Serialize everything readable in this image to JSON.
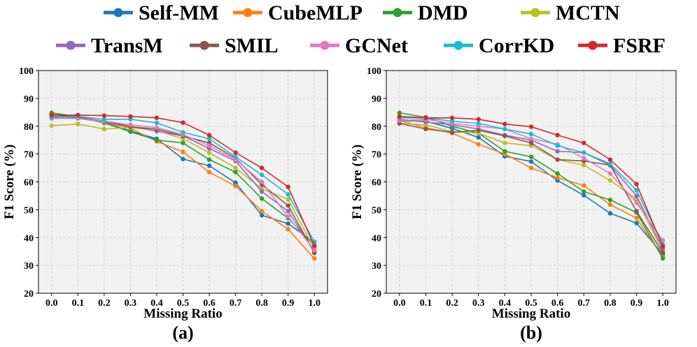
{
  "legend": {
    "entries": [
      {
        "name": "Self-MM",
        "color": "#1f77b4"
      },
      {
        "name": "CubeMLP",
        "color": "#ff7f0e"
      },
      {
        "name": "DMD",
        "color": "#2ca02c"
      },
      {
        "name": "MCTN",
        "color": "#bcbd22"
      },
      {
        "name": "TransM",
        "color": "#9467bd"
      },
      {
        "name": "SMIL",
        "color": "#8c564b"
      },
      {
        "name": "GCNet",
        "color": "#e377c2"
      },
      {
        "name": "CorrKD",
        "color": "#17becf"
      },
      {
        "name": "FSRF",
        "color": "#d62728"
      }
    ]
  },
  "chart_data": [
    {
      "type": "line",
      "panel_label": "(a)",
      "xlabel": "Missing Ratio",
      "ylabel": "F1 Score (%)",
      "x": [
        0.0,
        0.1,
        0.2,
        0.3,
        0.4,
        0.5,
        0.6,
        0.7,
        0.8,
        0.9,
        1.0
      ],
      "x_ticks": [
        "0.0",
        "0.1",
        "0.2",
        "0.3",
        "0.4",
        "0.5",
        "0.6",
        "0.7",
        "0.8",
        "0.9",
        "1.0"
      ],
      "y_ticks": [
        "20",
        "30",
        "40",
        "50",
        "60",
        "70",
        "80",
        "90",
        "100"
      ],
      "ylim": [
        20,
        100
      ],
      "grid": true,
      "series": [
        {
          "name": "Self-MM",
          "color": "#1f77b4",
          "values": [
            84.2,
            83.2,
            81.3,
            78.3,
            75.5,
            68.2,
            65.8,
            59.7,
            48.0,
            45.0,
            38.2
          ]
        },
        {
          "name": "CubeMLP",
          "color": "#ff7f0e",
          "values": [
            84.5,
            83.6,
            81.5,
            79.3,
            74.5,
            70.8,
            63.5,
            58.5,
            49.5,
            43.0,
            32.5
          ]
        },
        {
          "name": "DMD",
          "color": "#2ca02c",
          "values": [
            84.8,
            83.5,
            81.2,
            78.0,
            75.0,
            74.0,
            68.0,
            63.5,
            54.0,
            47.0,
            37.0
          ]
        },
        {
          "name": "MCTN",
          "color": "#bcbd22",
          "values": [
            80.2,
            80.8,
            79.0,
            79.5,
            78.5,
            75.5,
            70.5,
            65.0,
            57.5,
            53.7,
            36.0
          ]
        },
        {
          "name": "TransM",
          "color": "#9467bd",
          "values": [
            83.0,
            82.8,
            81.5,
            80.0,
            78.2,
            76.5,
            72.0,
            67.5,
            56.5,
            49.5,
            35.0
          ]
        },
        {
          "name": "SMIL",
          "color": "#8c564b",
          "values": [
            83.5,
            83.2,
            81.8,
            79.8,
            79.0,
            76.5,
            74.0,
            68.5,
            59.0,
            51.5,
            34.5
          ]
        },
        {
          "name": "GCNet",
          "color": "#e377c2",
          "values": [
            82.8,
            82.8,
            81.8,
            80.5,
            79.5,
            77.0,
            73.0,
            68.0,
            60.0,
            47.5,
            35.5
          ]
        },
        {
          "name": "CorrKD",
          "color": "#17becf",
          "values": [
            83.2,
            83.5,
            82.5,
            82.5,
            81.2,
            77.8,
            75.5,
            69.0,
            62.5,
            55.5,
            38.5
          ]
        },
        {
          "name": "FSRF",
          "color": "#d62728",
          "values": [
            84.0,
            84.0,
            83.8,
            83.5,
            83.0,
            81.3,
            76.8,
            70.5,
            65.0,
            58.2,
            37.0
          ]
        }
      ]
    },
    {
      "type": "line",
      "panel_label": "(b)",
      "xlabel": "Missing Ratio",
      "ylabel": "F1 Score (%)",
      "x": [
        0.0,
        0.1,
        0.2,
        0.3,
        0.4,
        0.5,
        0.6,
        0.7,
        0.8,
        0.9,
        1.0
      ],
      "x_ticks": [
        "0.0",
        "0.1",
        "0.2",
        "0.3",
        "0.4",
        "0.5",
        "0.6",
        "0.7",
        "0.8",
        "0.9",
        "1.0"
      ],
      "y_ticks": [
        "20",
        "30",
        "40",
        "50",
        "60",
        "70",
        "80",
        "90",
        "100"
      ],
      "ylim": [
        20,
        100
      ],
      "grid": true,
      "series": [
        {
          "name": "Self-MM",
          "color": "#1f77b4",
          "values": [
            82.0,
            81.8,
            79.2,
            76.0,
            69.2,
            67.3,
            60.5,
            55.2,
            48.7,
            45.2,
            34.0
          ]
        },
        {
          "name": "CubeMLP",
          "color": "#ff7f0e",
          "values": [
            82.0,
            79.5,
            77.5,
            73.5,
            70.0,
            65.0,
            61.5,
            58.7,
            51.8,
            47.0,
            33.0
          ]
        },
        {
          "name": "DMD",
          "color": "#2ca02c",
          "values": [
            84.8,
            83.2,
            80.0,
            77.5,
            71.0,
            69.0,
            63.0,
            56.5,
            53.5,
            49.0,
            32.5
          ]
        },
        {
          "name": "MCTN",
          "color": "#bcbd22",
          "values": [
            81.0,
            80.5,
            78.0,
            77.5,
            74.0,
            73.0,
            68.0,
            66.0,
            60.5,
            53.8,
            35.0
          ]
        },
        {
          "name": "TransM",
          "color": "#9467bd",
          "values": [
            82.5,
            81.5,
            80.5,
            79.0,
            76.8,
            75.0,
            71.0,
            70.5,
            66.0,
            55.0,
            36.0
          ]
        },
        {
          "name": "SMIL",
          "color": "#8c564b",
          "values": [
            81.0,
            79.0,
            77.8,
            78.5,
            76.5,
            74.0,
            68.0,
            67.5,
            66.0,
            49.5,
            34.5
          ]
        },
        {
          "name": "GCNet",
          "color": "#e377c2",
          "values": [
            82.0,
            82.5,
            81.0,
            80.0,
            79.0,
            75.5,
            73.5,
            68.5,
            63.0,
            52.5,
            39.0
          ]
        },
        {
          "name": "CorrKD",
          "color": "#17becf",
          "values": [
            83.0,
            83.0,
            81.8,
            81.0,
            79.0,
            77.2,
            73.0,
            70.5,
            66.5,
            57.0,
            37.5
          ]
        },
        {
          "name": "FSRF",
          "color": "#d62728",
          "values": [
            83.5,
            83.0,
            83.0,
            82.5,
            80.8,
            79.8,
            76.8,
            74.0,
            68.0,
            59.2,
            36.8
          ]
        }
      ]
    }
  ]
}
